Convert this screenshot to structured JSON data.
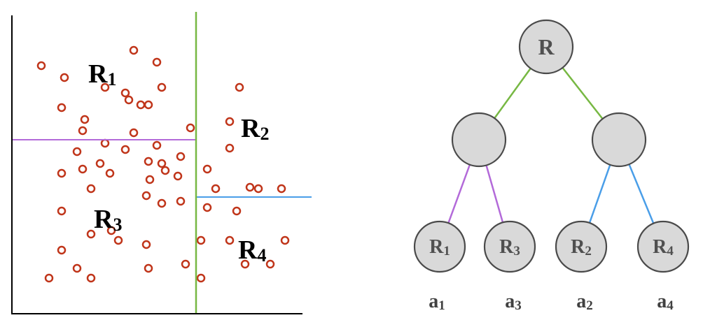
{
  "scatter": {
    "regions": [
      {
        "main": "R",
        "sub": "1"
      },
      {
        "main": "R",
        "sub": "2"
      },
      {
        "main": "R",
        "sub": "3"
      },
      {
        "main": "R",
        "sub": "4"
      }
    ],
    "colors": {
      "point": "#c0351a",
      "split_vertical": "#77b843",
      "split_left": "#b36ad9",
      "split_right": "#4a9ee8",
      "axis": "#000000"
    }
  },
  "tree": {
    "root": {
      "label": "R"
    },
    "leaves": [
      {
        "main": "R",
        "sub": "1"
      },
      {
        "main": "R",
        "sub": "3"
      },
      {
        "main": "R",
        "sub": "2"
      },
      {
        "main": "R",
        "sub": "4"
      }
    ],
    "captions": [
      {
        "main": "a",
        "sub": "1"
      },
      {
        "main": "a",
        "sub": "3"
      },
      {
        "main": "a",
        "sub": "2"
      },
      {
        "main": "a",
        "sub": "4"
      }
    ],
    "colors": {
      "node_fill": "#d9d9d9",
      "node_stroke": "#4a4a4a",
      "edge_root": "#77b843",
      "edge_left": "#b36ad9",
      "edge_right": "#4a9ee8"
    }
  }
}
